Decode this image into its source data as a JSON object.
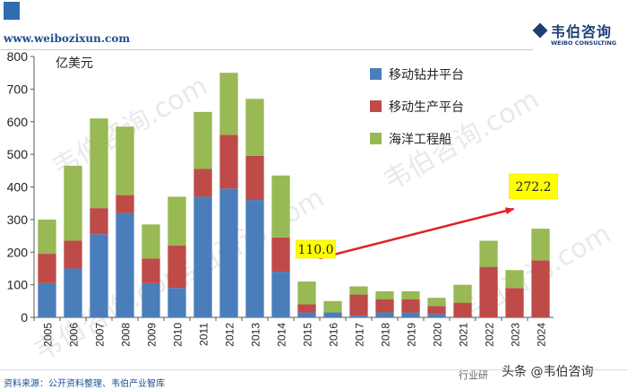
{
  "header": {
    "website": "www.weibozixun.com",
    "logo_cn": "韦伯咨询",
    "logo_en": "WEIBO CONSULTING"
  },
  "footer": {
    "source": "资料来源：公开资料整理、韦伯产业智库",
    "right_text": "行业研",
    "watermark_credit": "头条 @韦伯咨询"
  },
  "watermark_text": "韦伯咨询.com",
  "colors": {
    "drilling": "#4a7ebb",
    "production": "#be4b48",
    "engineering": "#98b954",
    "arrow": "#e0232a",
    "callout_fill": "#ffff00"
  },
  "chart_data": {
    "type": "bar",
    "stacked": true,
    "unit_label": "亿美元",
    "categories": [
      "2005",
      "2006",
      "2007",
      "2008",
      "2009",
      "2010",
      "2011",
      "2012",
      "2013",
      "2014",
      "2015",
      "2016",
      "2017",
      "2018",
      "2019",
      "2020",
      "2021",
      "2022",
      "2023",
      "2024"
    ],
    "series": [
      {
        "name": "移动钻井平台",
        "color": "#4a7ebb",
        "values": [
          105,
          150,
          255,
          320,
          105,
          90,
          370,
          395,
          360,
          140,
          15,
          15,
          5,
          15,
          15,
          10,
          0,
          0,
          0,
          0
        ]
      },
      {
        "name": "移动生产平台",
        "color": "#be4b48",
        "values": [
          90,
          85,
          80,
          55,
          75,
          130,
          85,
          165,
          135,
          105,
          25,
          0,
          65,
          40,
          40,
          25,
          45,
          155,
          90,
          175
        ]
      },
      {
        "name": "海洋工程船",
        "color": "#98b954",
        "values": [
          105,
          230,
          275,
          210,
          105,
          150,
          175,
          190,
          175,
          190,
          70,
          35,
          25,
          25,
          25,
          25,
          55,
          80,
          55,
          97
        ]
      }
    ],
    "ylim": [
      0,
      800
    ],
    "yticks": [
      0,
      100,
      200,
      300,
      400,
      500,
      600,
      700,
      800
    ],
    "legend_position": "top-right",
    "annotations": [
      {
        "label": "110.0",
        "category": "2015",
        "value": 110.0
      },
      {
        "label": "272.2",
        "category": "2024",
        "value": 272.2
      }
    ],
    "trend_arrow": {
      "from": "2015",
      "to": "2024"
    }
  }
}
